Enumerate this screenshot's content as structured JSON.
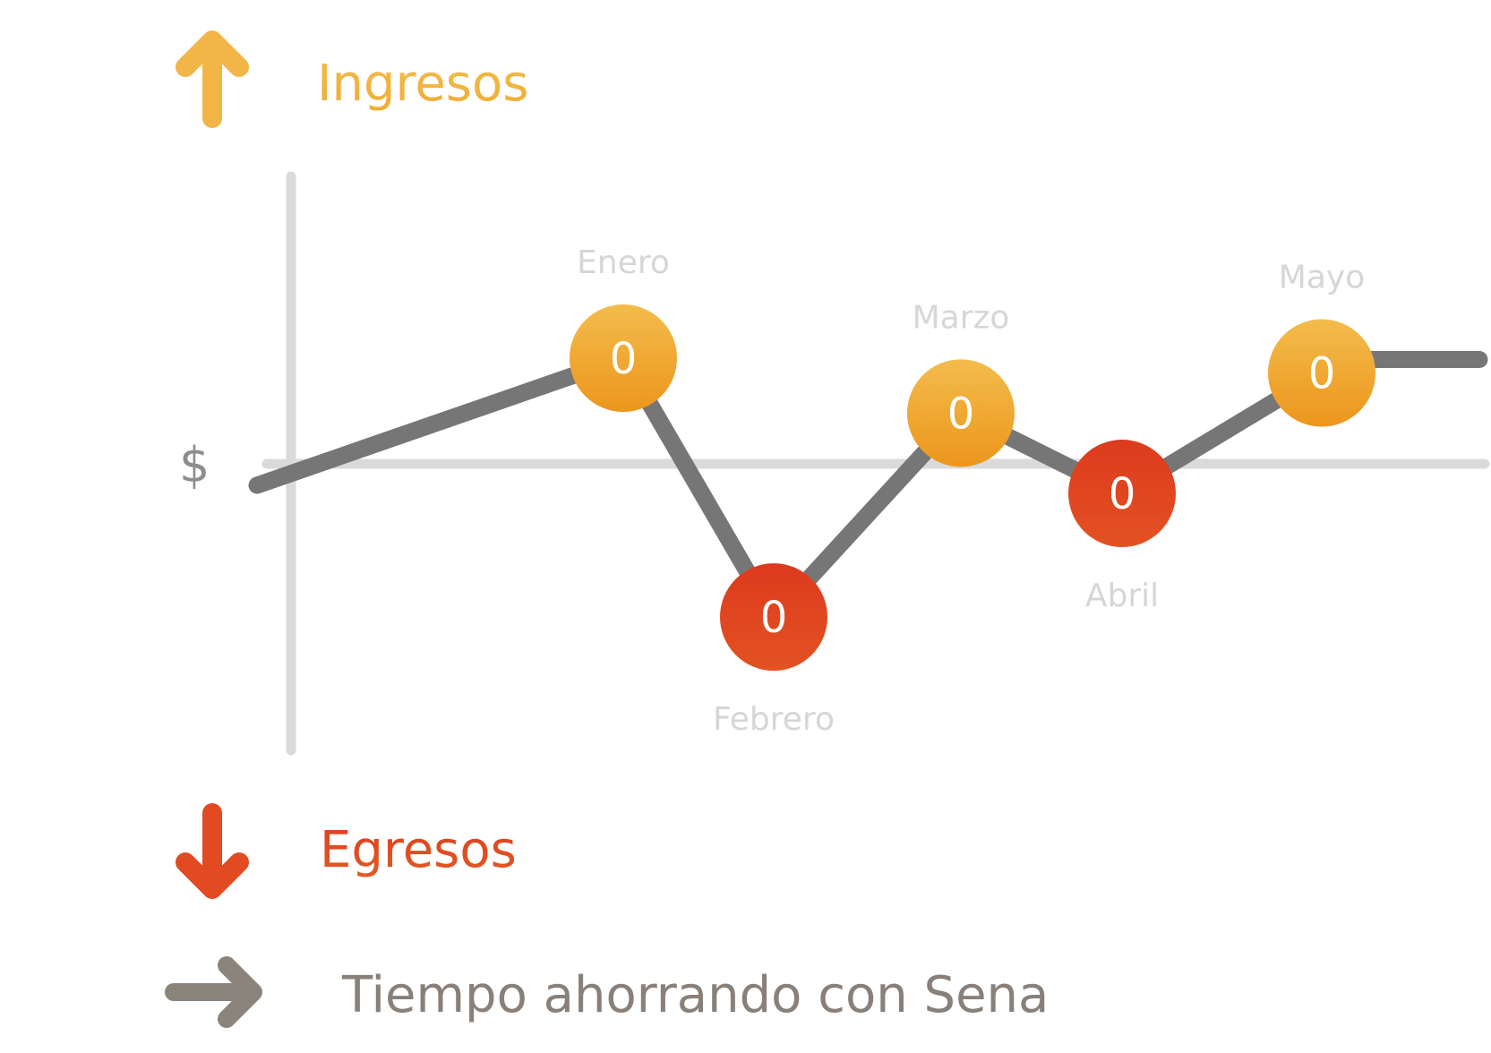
{
  "legend": {
    "income_label": "Ingresos",
    "expense_label": "Egresos",
    "time_label": "Tiempo ahorrando con Sena",
    "y_axis_symbol": "$",
    "icons": {
      "income": "arrow-up-icon",
      "expense": "arrow-down-icon",
      "time": "arrow-right-icon"
    }
  },
  "colors": {
    "income": "#ef9f22",
    "income_light": "#f3bc4c",
    "expense": "#e24a21",
    "expense_light": "#de3a1f",
    "line": "#767676",
    "axis": "#dadada",
    "month_label": "#d6d6d6",
    "time_label": "#888079"
  },
  "chart_data": {
    "type": "line",
    "categories": [
      "Enero",
      "Febrero",
      "Marzo",
      "Abril",
      "Mayo"
    ],
    "values": [
      0,
      0,
      0,
      0,
      0
    ],
    "point_types": [
      "income",
      "expense",
      "income",
      "expense",
      "income"
    ],
    "relative_level": [
      1.0,
      -1.45,
      0.48,
      -0.28,
      0.86
    ],
    "grid": false,
    "xlabel": "Tiempo ahorrando con Sena",
    "ylabel": "$"
  }
}
